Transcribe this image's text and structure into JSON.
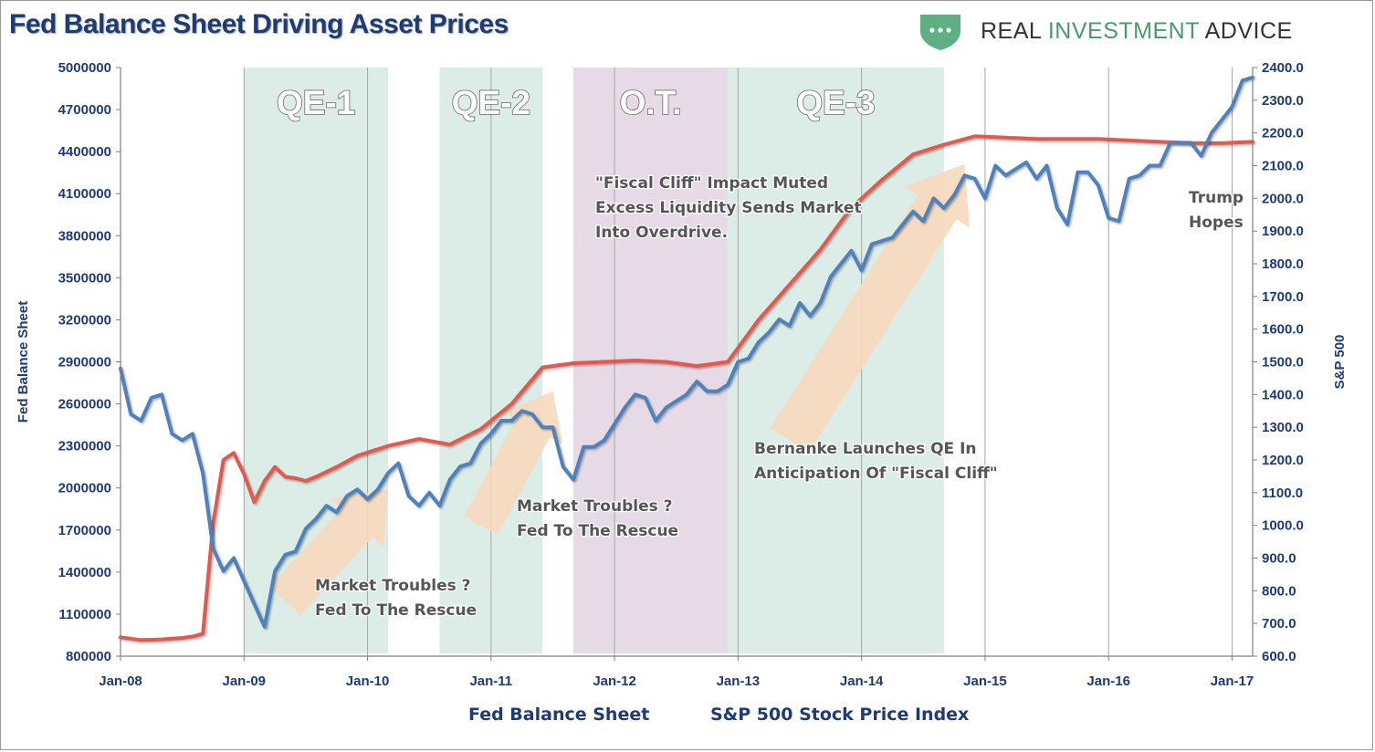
{
  "title": "Fed Balance Sheet Driving Asset Prices",
  "logo": {
    "text_part1": "REAL",
    "text_part2": "INVESTMENT",
    "text_part3": "ADVICE",
    "icon": "shield-chat-icon"
  },
  "colors": {
    "fed": "#e05a4e",
    "spx": "#4f81bd",
    "qe_band": "#dcece6",
    "ot_band": "#e6dae6",
    "arrow": "#f6d9bd",
    "grid": "#a6a6a6",
    "axis_text": "#1f3b73"
  },
  "chart_data": {
    "type": "line",
    "title": "Fed Balance Sheet Driving Asset Prices",
    "x_range": [
      "2008-01",
      "2017-03"
    ],
    "x_ticks": [
      "Jan-08",
      "Jan-09",
      "Jan-10",
      "Jan-11",
      "Jan-12",
      "Jan-13",
      "Jan-14",
      "Jan-15",
      "Jan-16",
      "Jan-17"
    ],
    "y_left": {
      "label": "Fed Balance Sheet",
      "range": [
        800000,
        5000000
      ],
      "ticks": [
        "800000",
        "1100000",
        "1400000",
        "1700000",
        "2000000",
        "2300000",
        "2600000",
        "2900000",
        "3200000",
        "3500000",
        "3800000",
        "4100000",
        "4400000",
        "4700000",
        "5000000"
      ]
    },
    "y_right": {
      "label": "S&P 500",
      "range": [
        600,
        2400
      ],
      "ticks": [
        "600.0",
        "700.0",
        "800.0",
        "900.0",
        "1000.0",
        "1100.0",
        "1200.0",
        "1300.0",
        "1400.0",
        "1500.0",
        "1600.0",
        "1700.0",
        "1800.0",
        "1900.0",
        "2000.0",
        "2100.0",
        "2200.0",
        "2300.0",
        "2400.0"
      ]
    },
    "grid": "vertical at year ticks",
    "legend_position": "bottom-center",
    "series": [
      {
        "name": "Fed Balance Sheet",
        "axis": "left",
        "points": [
          [
            "2008-01",
            935000
          ],
          [
            "2008-03",
            915000
          ],
          [
            "2008-05",
            920000
          ],
          [
            "2008-07",
            930000
          ],
          [
            "2008-08",
            940000
          ],
          [
            "2008-09",
            960000
          ],
          [
            "2008-10",
            1750000
          ],
          [
            "2008-11",
            2200000
          ],
          [
            "2008-12",
            2250000
          ],
          [
            "2009-01",
            2100000
          ],
          [
            "2009-02",
            1900000
          ],
          [
            "2009-03",
            2050000
          ],
          [
            "2009-04",
            2150000
          ],
          [
            "2009-05",
            2080000
          ],
          [
            "2009-06",
            2070000
          ],
          [
            "2009-07",
            2050000
          ],
          [
            "2009-08",
            2080000
          ],
          [
            "2009-10",
            2150000
          ],
          [
            "2009-12",
            2230000
          ],
          [
            "2010-03",
            2300000
          ],
          [
            "2010-06",
            2350000
          ],
          [
            "2010-09",
            2310000
          ],
          [
            "2010-12",
            2420000
          ],
          [
            "2011-03",
            2600000
          ],
          [
            "2011-06",
            2860000
          ],
          [
            "2011-09",
            2890000
          ],
          [
            "2011-12",
            2900000
          ],
          [
            "2012-03",
            2910000
          ],
          [
            "2012-06",
            2900000
          ],
          [
            "2012-09",
            2870000
          ],
          [
            "2012-12",
            2900000
          ],
          [
            "2013-03",
            3200000
          ],
          [
            "2013-06",
            3450000
          ],
          [
            "2013-09",
            3700000
          ],
          [
            "2013-12",
            4000000
          ],
          [
            "2014-03",
            4200000
          ],
          [
            "2014-06",
            4380000
          ],
          [
            "2014-09",
            4450000
          ],
          [
            "2014-12",
            4510000
          ],
          [
            "2015-03",
            4500000
          ],
          [
            "2015-06",
            4490000
          ],
          [
            "2015-09",
            4490000
          ],
          [
            "2015-12",
            4490000
          ],
          [
            "2016-03",
            4480000
          ],
          [
            "2016-06",
            4470000
          ],
          [
            "2016-09",
            4460000
          ],
          [
            "2016-12",
            4460000
          ],
          [
            "2017-03",
            4470000
          ]
        ]
      },
      {
        "name": "S&P 500 Stock Price Index",
        "axis": "right",
        "points": [
          [
            "2008-01",
            1480
          ],
          [
            "2008-02",
            1340
          ],
          [
            "2008-03",
            1320
          ],
          [
            "2008-04",
            1390
          ],
          [
            "2008-05",
            1400
          ],
          [
            "2008-06",
            1280
          ],
          [
            "2008-07",
            1260
          ],
          [
            "2008-08",
            1280
          ],
          [
            "2008-09",
            1160
          ],
          [
            "2008-10",
            930
          ],
          [
            "2008-11",
            860
          ],
          [
            "2008-12",
            900
          ],
          [
            "2009-01",
            830
          ],
          [
            "2009-02",
            760
          ],
          [
            "2009-03",
            690
          ],
          [
            "2009-04",
            860
          ],
          [
            "2009-05",
            910
          ],
          [
            "2009-06",
            920
          ],
          [
            "2009-07",
            990
          ],
          [
            "2009-08",
            1020
          ],
          [
            "2009-09",
            1060
          ],
          [
            "2009-10",
            1040
          ],
          [
            "2009-11",
            1090
          ],
          [
            "2009-12",
            1110
          ],
          [
            "2010-01",
            1080
          ],
          [
            "2010-02",
            1110
          ],
          [
            "2010-03",
            1160
          ],
          [
            "2010-04",
            1190
          ],
          [
            "2010-05",
            1090
          ],
          [
            "2010-06",
            1060
          ],
          [
            "2010-07",
            1100
          ],
          [
            "2010-08",
            1060
          ],
          [
            "2010-09",
            1140
          ],
          [
            "2010-10",
            1180
          ],
          [
            "2010-11",
            1190
          ],
          [
            "2010-12",
            1250
          ],
          [
            "2011-01",
            1280
          ],
          [
            "2011-02",
            1320
          ],
          [
            "2011-03",
            1320
          ],
          [
            "2011-04",
            1350
          ],
          [
            "2011-05",
            1340
          ],
          [
            "2011-06",
            1300
          ],
          [
            "2011-07",
            1300
          ],
          [
            "2011-08",
            1180
          ],
          [
            "2011-09",
            1140
          ],
          [
            "2011-10",
            1240
          ],
          [
            "2011-11",
            1240
          ],
          [
            "2011-12",
            1260
          ],
          [
            "2012-01",
            1310
          ],
          [
            "2012-02",
            1360
          ],
          [
            "2012-03",
            1400
          ],
          [
            "2012-04",
            1390
          ],
          [
            "2012-05",
            1320
          ],
          [
            "2012-06",
            1360
          ],
          [
            "2012-07",
            1380
          ],
          [
            "2012-08",
            1400
          ],
          [
            "2012-09",
            1440
          ],
          [
            "2012-10",
            1410
          ],
          [
            "2012-11",
            1410
          ],
          [
            "2012-12",
            1430
          ],
          [
            "2013-01",
            1500
          ],
          [
            "2013-02",
            1510
          ],
          [
            "2013-03",
            1560
          ],
          [
            "2013-04",
            1590
          ],
          [
            "2013-05",
            1630
          ],
          [
            "2013-06",
            1610
          ],
          [
            "2013-07",
            1680
          ],
          [
            "2013-08",
            1640
          ],
          [
            "2013-09",
            1680
          ],
          [
            "2013-10",
            1760
          ],
          [
            "2013-11",
            1800
          ],
          [
            "2013-12",
            1840
          ],
          [
            "2014-01",
            1780
          ],
          [
            "2014-02",
            1860
          ],
          [
            "2014-03",
            1870
          ],
          [
            "2014-04",
            1880
          ],
          [
            "2014-05",
            1920
          ],
          [
            "2014-06",
            1960
          ],
          [
            "2014-07",
            1930
          ],
          [
            "2014-08",
            2000
          ],
          [
            "2014-09",
            1970
          ],
          [
            "2014-10",
            2010
          ],
          [
            "2014-11",
            2070
          ],
          [
            "2014-12",
            2060
          ],
          [
            "2015-01",
            2000
          ],
          [
            "2015-02",
            2100
          ],
          [
            "2015-03",
            2070
          ],
          [
            "2015-04",
            2090
          ],
          [
            "2015-05",
            2110
          ],
          [
            "2015-06",
            2060
          ],
          [
            "2015-07",
            2100
          ],
          [
            "2015-08",
            1970
          ],
          [
            "2015-09",
            1920
          ],
          [
            "2015-10",
            2080
          ],
          [
            "2015-11",
            2080
          ],
          [
            "2015-12",
            2040
          ],
          [
            "2016-01",
            1940
          ],
          [
            "2016-02",
            1930
          ],
          [
            "2016-03",
            2060
          ],
          [
            "2016-04",
            2070
          ],
          [
            "2016-05",
            2100
          ],
          [
            "2016-06",
            2100
          ],
          [
            "2016-07",
            2170
          ],
          [
            "2016-08",
            2170
          ],
          [
            "2016-09",
            2170
          ],
          [
            "2016-10",
            2130
          ],
          [
            "2016-11",
            2200
          ],
          [
            "2016-12",
            2240
          ],
          [
            "2017-01",
            2280
          ],
          [
            "2017-02",
            2360
          ],
          [
            "2017-03",
            2370
          ]
        ]
      }
    ],
    "bands": [
      {
        "label": "QE-1",
        "start": "2009-01",
        "end": "2010-03",
        "kind": "qe"
      },
      {
        "label": "QE-2",
        "start": "2010-08",
        "end": "2011-06",
        "kind": "qe"
      },
      {
        "label": "O.T.",
        "start": "2011-09",
        "end": "2012-12",
        "kind": "ot"
      },
      {
        "label": "QE-3",
        "start": "2012-12",
        "end": "2014-09",
        "kind": "qe"
      }
    ],
    "annotations": [
      {
        "id": "qe1",
        "lines": [
          "Market Troubles ?",
          "Fed To The Rescue"
        ]
      },
      {
        "id": "qe2",
        "lines": [
          "Market Troubles ?",
          "Fed To The Rescue"
        ]
      },
      {
        "id": "fiscal",
        "lines": [
          "\"Fiscal Cliff\" Impact Muted",
          "Excess Liquidity Sends Market",
          "Into Overdrive."
        ]
      },
      {
        "id": "qe3",
        "lines": [
          "Bernanke Launches QE In",
          "Anticipation Of \"Fiscal Cliff\""
        ]
      },
      {
        "id": "trump",
        "lines": [
          "Trump",
          "Hopes"
        ]
      }
    ]
  }
}
